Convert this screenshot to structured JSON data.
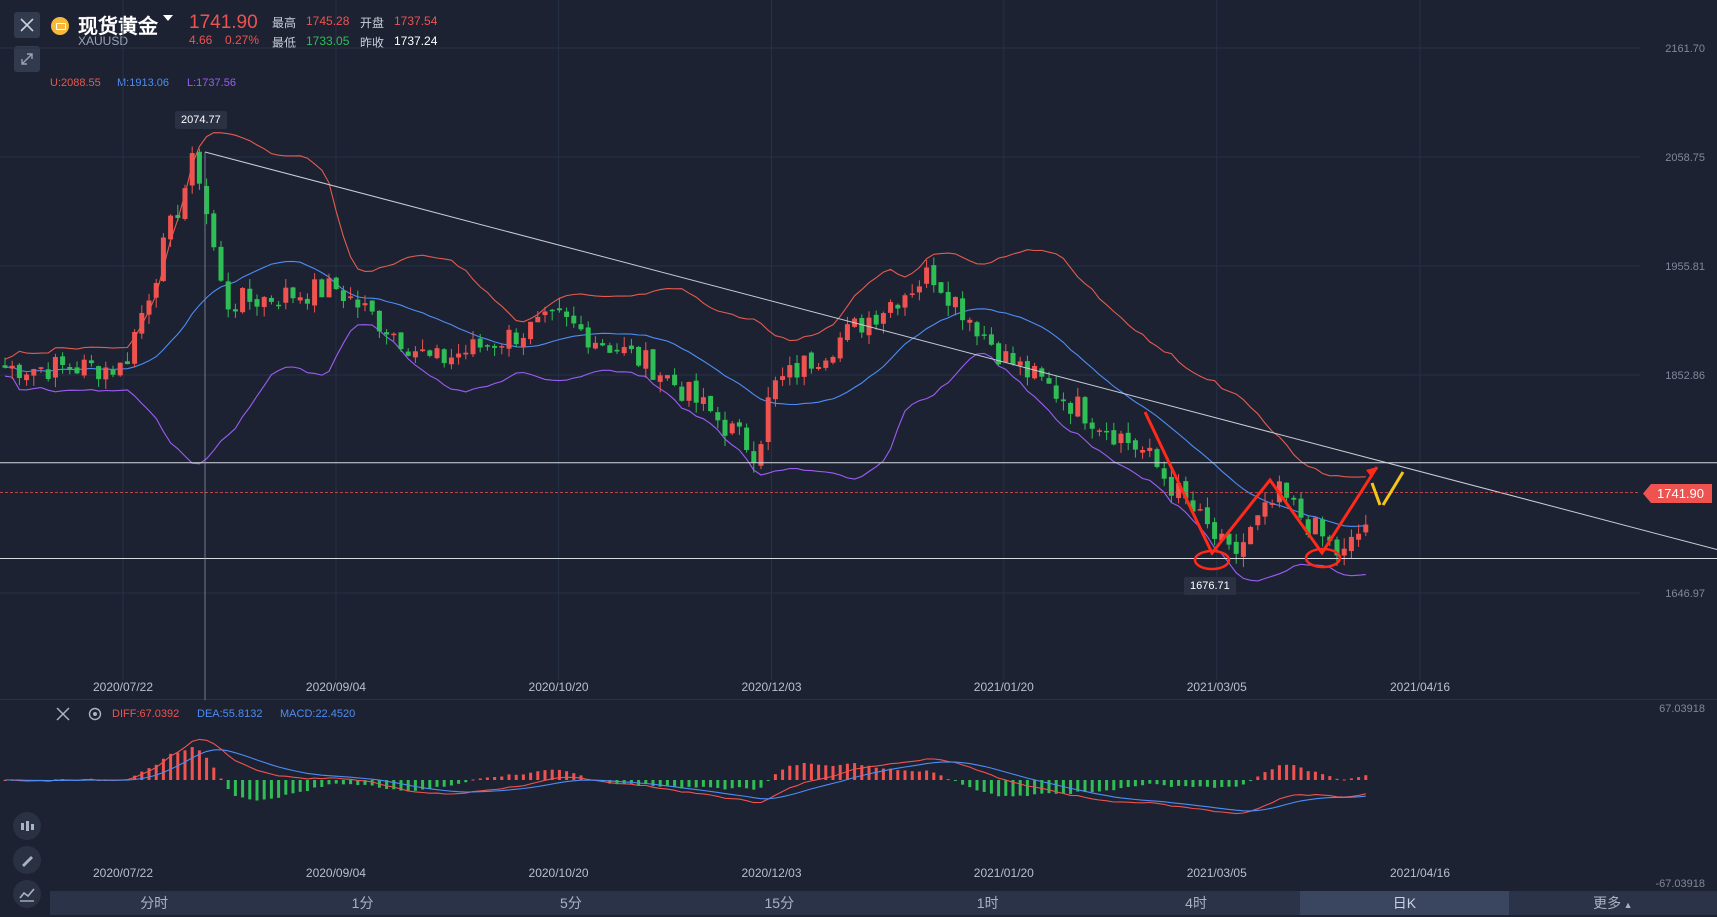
{
  "header": {
    "title": "现货黄金",
    "symbol": "XAUUSD",
    "price": "1741.90",
    "change": "4.66",
    "change_pct": "0.27%",
    "high_label": "最高",
    "high": "1745.28",
    "open_label": "开盘",
    "open": "1737.54",
    "low_label": "最低",
    "low": "1733.05",
    "prev_close_label": "昨收",
    "prev_close": "1737.24"
  },
  "indicators": {
    "boll_u": "U:2088.55",
    "boll_m": "M:1913.06",
    "boll_l": "L:1737.56",
    "macd_diff": "DIFF:67.0392",
    "macd_dea": "DEA:55.8132",
    "macd_val": "MACD:22.4520"
  },
  "annotations": {
    "high_tag": "2074.77",
    "low_tag": "1676.71",
    "current_tag": "1741.90"
  },
  "colors": {
    "up": "#ef5350",
    "down": "#2fbd55",
    "boll_u": "#e55a4e",
    "boll_m": "#4d8df5",
    "boll_l": "#9d5cf5",
    "arrow_red": "#ff2a1a",
    "arrow_yellow": "#f5c518"
  },
  "tabs": [
    "分时",
    "1分",
    "5分",
    "15分",
    "1时",
    "4时",
    "日K",
    "更多"
  ],
  "active_tab": "日K",
  "chart_data": [
    {
      "type": "candlestick",
      "title": "现货黄金 XAUUSD 日K",
      "ylim": [
        1600,
        2180
      ],
      "y_ticks": [
        "2161.70",
        "2058.75",
        "1955.81",
        "1852.86",
        "1646.97"
      ],
      "x_ticks": [
        "2020/07/22",
        "2020/09/04",
        "2020/10/20",
        "2020/12/03",
        "2021/01/20",
        "2021/03/05",
        "2021/04/16"
      ],
      "grid": true,
      "notes": {
        "high": 2074.77,
        "low": 1676.71,
        "last": 1741.9
      },
      "key_closes": [
        {
          "x": "2020/07/22",
          "y": 1860
        },
        {
          "x": "2020/08/06",
          "y": 2060
        },
        {
          "x": "2020/08/12",
          "y": 1920
        },
        {
          "x": "2020/09/04",
          "y": 1935
        },
        {
          "x": "2020/09/24",
          "y": 1865
        },
        {
          "x": "2020/10/20",
          "y": 1905
        },
        {
          "x": "2020/11/09",
          "y": 1860
        },
        {
          "x": "2020/11/30",
          "y": 1780
        },
        {
          "x": "2020/12/03",
          "y": 1840
        },
        {
          "x": "2021/01/05",
          "y": 1950
        },
        {
          "x": "2021/01/20",
          "y": 1870
        },
        {
          "x": "2021/02/18",
          "y": 1780
        },
        {
          "x": "2021/03/08",
          "y": 1680
        },
        {
          "x": "2021/03/18",
          "y": 1740
        },
        {
          "x": "2021/03/31",
          "y": 1680
        },
        {
          "x": "2021/04/09",
          "y": 1742
        }
      ],
      "series": [
        {
          "name": "U",
          "last": 2088.55
        },
        {
          "name": "M",
          "last": 1913.06
        },
        {
          "name": "L",
          "last": 1737.56
        }
      ]
    },
    {
      "type": "macd",
      "ylim": [
        -67.03918,
        67.03918
      ],
      "y_ticks": [
        "67.03918",
        "-67.03918"
      ],
      "series": [
        {
          "name": "DIFF",
          "last": 67.0392
        },
        {
          "name": "DEA",
          "last": 55.8132
        },
        {
          "name": "MACD",
          "last": 22.452
        }
      ]
    }
  ]
}
